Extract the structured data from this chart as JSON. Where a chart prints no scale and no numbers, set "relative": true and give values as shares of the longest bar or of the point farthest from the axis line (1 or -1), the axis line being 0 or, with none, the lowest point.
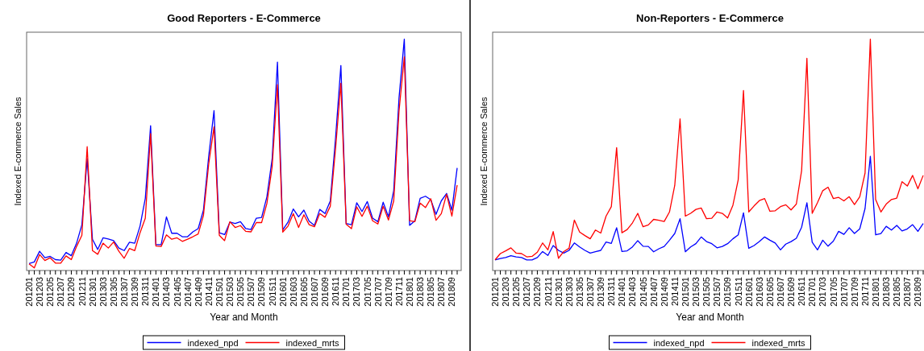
{
  "chart_data": [
    {
      "type": "line",
      "title": "Good Reporters - E-Commerce",
      "xlabel": "Year and Month",
      "ylabel": "Indexed E-commerce Sales",
      "relative": true,
      "legend": "bottom",
      "marker": "none",
      "line_style": "solid",
      "categories": [
        "201201",
        null,
        "201203",
        null,
        "201205",
        null,
        "201207",
        null,
        "201209",
        null,
        "201211",
        null,
        "201301",
        null,
        "201303",
        null,
        "201305",
        null,
        "201307",
        null,
        "201309",
        null,
        "201311",
        null,
        "201401",
        null,
        "201403",
        null,
        "201405",
        null,
        "201407",
        null,
        "201409",
        null,
        "201411",
        null,
        "201501",
        null,
        "201503",
        null,
        "201505",
        null,
        "201507",
        null,
        "201509",
        null,
        "201511",
        null,
        "201601",
        null,
        "201603",
        null,
        "201605",
        null,
        "201607",
        null,
        "201609",
        null,
        "201611",
        null,
        "201701",
        null,
        "201703",
        null,
        "201705",
        null,
        "201707",
        null,
        "201709",
        null,
        "201711",
        null,
        "201801",
        null,
        "201803",
        null,
        "201805",
        null,
        "201807",
        null,
        "201809",
        null
      ],
      "series": [
        {
          "name": "indexed_npd",
          "color": "#0000ff",
          "values": [
            0.03,
            0.037,
            0.083,
            0.055,
            0.061,
            0.047,
            0.045,
            0.078,
            0.064,
            0.118,
            0.198,
            0.483,
            0.135,
            0.091,
            0.141,
            0.136,
            0.129,
            0.097,
            0.086,
            0.122,
            0.118,
            0.192,
            0.312,
            0.626,
            0.112,
            0.112,
            0.232,
            0.161,
            0.161,
            0.146,
            0.146,
            0.167,
            0.181,
            0.261,
            0.495,
            0.691,
            0.163,
            0.155,
            0.209,
            0.203,
            0.211,
            0.181,
            0.177,
            0.226,
            0.229,
            0.318,
            0.483,
            0.901,
            0.175,
            0.209,
            0.266,
            0.232,
            0.261,
            0.213,
            0.195,
            0.264,
            0.246,
            0.301,
            0.575,
            0.886,
            0.203,
            0.198,
            0.293,
            0.255,
            0.298,
            0.226,
            0.211,
            0.295,
            0.232,
            0.346,
            0.746,
            1.0,
            0.195,
            0.215,
            0.312,
            0.321,
            0.306,
            0.243,
            0.301,
            0.333,
            0.261,
            0.443
          ]
        },
        {
          "name": "indexed_mrts",
          "color": "#ff0000",
          "values": [
            0.029,
            0.011,
            0.069,
            0.043,
            0.055,
            0.032,
            0.032,
            0.063,
            0.047,
            0.104,
            0.152,
            0.535,
            0.086,
            0.07,
            0.118,
            0.097,
            0.123,
            0.083,
            0.053,
            0.095,
            0.086,
            0.163,
            0.226,
            0.592,
            0.106,
            0.104,
            0.154,
            0.135,
            0.141,
            0.126,
            0.135,
            0.146,
            0.158,
            0.238,
            0.461,
            0.621,
            0.152,
            0.129,
            0.211,
            0.186,
            0.194,
            0.169,
            0.167,
            0.207,
            0.207,
            0.289,
            0.449,
            0.803,
            0.166,
            0.192,
            0.246,
            0.186,
            0.241,
            0.198,
            0.189,
            0.246,
            0.23,
            0.278,
            0.529,
            0.809,
            0.2,
            0.181,
            0.275,
            0.234,
            0.278,
            0.215,
            0.201,
            0.278,
            0.218,
            0.301,
            0.689,
            0.923,
            0.215,
            0.211,
            0.291,
            0.272,
            0.31,
            0.217,
            0.246,
            0.329,
            0.235,
            0.369
          ]
        }
      ]
    },
    {
      "type": "line",
      "title": "Non-Reporters - E-Commerce",
      "xlabel": "Year and Month",
      "ylabel": "Indexed E-commerce Sales",
      "relative": true,
      "legend": "bottom",
      "marker": "none",
      "line_style": "solid",
      "categories": [
        "201201",
        null,
        "201203",
        null,
        "201205",
        null,
        "201207",
        null,
        "201209",
        null,
        "201211",
        null,
        "201301",
        null,
        "201303",
        null,
        "201305",
        null,
        "201307",
        null,
        "201309",
        null,
        "201311",
        null,
        "201401",
        null,
        "201403",
        null,
        "201405",
        null,
        "201407",
        null,
        "201409",
        null,
        "201411",
        null,
        "201501",
        null,
        "201503",
        null,
        "201505",
        null,
        "201507",
        null,
        "201509",
        null,
        "201511",
        null,
        "201601",
        null,
        "201603",
        null,
        "201605",
        null,
        "201607",
        null,
        "201609",
        null,
        "201611",
        null,
        "201701",
        null,
        "201703",
        null,
        "201705",
        null,
        "201707",
        null,
        "201709",
        null,
        "201711",
        null,
        "201801",
        null,
        "201803",
        null,
        "201805",
        null,
        "201807",
        null,
        "201809",
        null
      ],
      "series": [
        {
          "name": "indexed_npd",
          "color": "#0000ff",
          "values": [
            0.046,
            0.052,
            0.056,
            0.064,
            0.059,
            0.056,
            0.046,
            0.046,
            0.056,
            0.082,
            0.065,
            0.108,
            0.087,
            0.075,
            0.087,
            0.119,
            0.102,
            0.087,
            0.075,
            0.081,
            0.087,
            0.123,
            0.117,
            0.185,
            0.082,
            0.085,
            0.102,
            0.129,
            0.105,
            0.104,
            0.081,
            0.094,
            0.104,
            0.131,
            0.16,
            0.224,
            0.081,
            0.102,
            0.116,
            0.145,
            0.125,
            0.116,
            0.098,
            0.104,
            0.116,
            0.137,
            0.154,
            0.249,
            0.096,
            0.108,
            0.125,
            0.145,
            0.131,
            0.119,
            0.089,
            0.114,
            0.125,
            0.139,
            0.187,
            0.293,
            0.122,
            0.089,
            0.131,
            0.105,
            0.127,
            0.169,
            0.156,
            0.185,
            0.16,
            0.18,
            0.268,
            0.494,
            0.154,
            0.16,
            0.191,
            0.175,
            0.195,
            0.171,
            0.18,
            0.198,
            0.169,
            0.203
          ]
        },
        {
          "name": "indexed_mrts",
          "color": "#ff0000",
          "values": [
            0.046,
            0.073,
            0.085,
            0.098,
            0.075,
            0.073,
            0.059,
            0.061,
            0.079,
            0.119,
            0.089,
            0.168,
            0.053,
            0.082,
            0.096,
            0.218,
            0.166,
            0.151,
            0.137,
            0.175,
            0.162,
            0.235,
            0.276,
            0.531,
            0.163,
            0.177,
            0.206,
            0.247,
            0.189,
            0.197,
            0.221,
            0.217,
            0.212,
            0.253,
            0.368,
            0.655,
            0.235,
            0.247,
            0.264,
            0.27,
            0.224,
            0.226,
            0.253,
            0.247,
            0.227,
            0.282,
            0.392,
            0.778,
            0.253,
            0.279,
            0.302,
            0.311,
            0.256,
            0.258,
            0.276,
            0.284,
            0.262,
            0.287,
            0.432,
            0.917,
            0.247,
            0.293,
            0.345,
            0.36,
            0.311,
            0.316,
            0.301,
            0.319,
            0.285,
            0.319,
            0.421,
            1.0,
            0.307,
            0.253,
            0.287,
            0.307,
            0.313,
            0.384,
            0.365,
            0.411,
            0.353,
            0.411
          ]
        }
      ]
    }
  ]
}
